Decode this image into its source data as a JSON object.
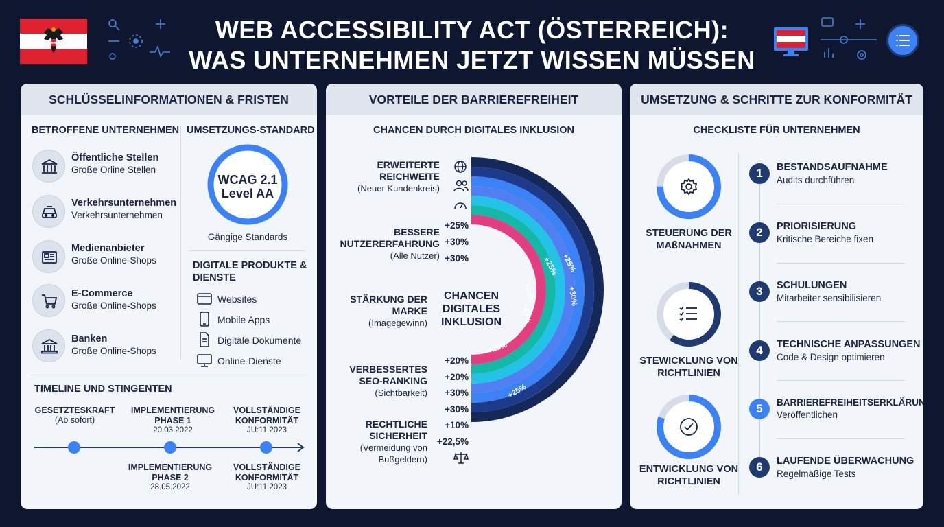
{
  "title_line1": "WEB ACCESSIBILITY ACT (ÖSTERREICH):",
  "title_line2": "WAS UNTERNEHMEN JETZT WISSEN MÜSSEN",
  "colors": {
    "navy": "#0e1630",
    "blue": "#3b82f6",
    "dark_blue": "#1e3a6e",
    "pink": "#e23e80",
    "teal": "#14b8a6",
    "cyan": "#22c3e6",
    "red": "#e0212f"
  },
  "left": {
    "heading": "SCHLÜSSELINFORMATIONEN & FRISTEN",
    "affected_heading": "BETROFFENE UNTERNEHMEN",
    "affected": [
      {
        "icon": "government-building-icon",
        "title": "Öffentliche Stellen",
        "sub": "Große Orline Stellen"
      },
      {
        "icon": "car-icon",
        "title": "Verkehrsunternehmen",
        "sub": "Verkehrsunternehmen"
      },
      {
        "icon": "newspaper-icon",
        "title": "Medienanbieter",
        "sub": "Große Online-Shops"
      },
      {
        "icon": "shopping-cart-icon",
        "title": "E-Commerce",
        "sub": "Große Online-Shops"
      },
      {
        "icon": "bank-icon",
        "title": "Banken",
        "sub": "Große Online-Shops"
      }
    ],
    "standard_heading": "UMSETZUNGS-STANDARD",
    "standard_line1": "WCAG 2.1",
    "standard_line2": "Level AA",
    "standard_caption": "Gängige Standards",
    "products_heading": "DIGITALE PRODUKTE & DIENSTE",
    "products": [
      {
        "icon": "browser-window-icon",
        "label": "Websites"
      },
      {
        "icon": "smartphone-icon",
        "label": "Mobile Apps"
      },
      {
        "icon": "document-icon",
        "label": "Digitale Dokumente"
      },
      {
        "icon": "monitor-icon",
        "label": "Online-Dienste"
      }
    ],
    "timeline_heading": "TIMELINE UND STINGENTEN",
    "timeline_top": [
      {
        "title": "GESETZTESKRAFT",
        "sub": "(Ab sofort)"
      },
      {
        "title": "IMPLEMENTIERUNG PHASE 1",
        "sub": "20.03.2022"
      },
      {
        "title": "VOLLSTÄNDIGE KONFORMITÄT",
        "sub": "JU:11.2023"
      }
    ],
    "timeline_bottom": [
      {
        "title": "IMPLEMENTIERUNG PHASE 2",
        "sub": "28.05.2022"
      },
      {
        "title": "VOLLSTÄNDIGE KONFORMITÄT",
        "sub": "JU:11.2023"
      }
    ]
  },
  "middle": {
    "heading": "VORTEILE DER BARRIEREFREIHEIT",
    "subheading": "CHANCEN DURCH DIGITALES INKLUSION",
    "center_label": "CHANCEN DIGITALES INKLUSION",
    "benefits": [
      {
        "title": "ERWEITERTE REICHWEITE",
        "sub": "(Neuer Kundenkreis)"
      },
      {
        "title": "BESSERE NUTZERERFAHRUNG",
        "sub": "(Alle Nutzer)"
      },
      {
        "title": "STÄRKUNG DER MARKE",
        "sub": "(Imagegewinn)"
      },
      {
        "title": "VERBESSERTES SEO-RANKING",
        "sub": "(Sichtbarkeit)"
      },
      {
        "title": "RECHTLICHE SICHERHEIT",
        "sub": "(Vermeidung von Bußgeldern)"
      }
    ],
    "values_a": [
      "+25%",
      "+30%",
      "+30%"
    ],
    "values_b": [
      "+20%",
      "+20%",
      "+30%",
      "+30%",
      "+10%",
      "+22,5%"
    ],
    "arc_labels": [
      "+25%",
      "+25%",
      "+30%",
      "+33%",
      "+25%",
      "+30%",
      "+25%"
    ]
  },
  "right": {
    "heading": "UMSETZUNG & SCHRITTE ZUR KONFORMITÄT",
    "subheading": "CHECKLISTE FÜR UNTERNEHMEN",
    "rings": [
      {
        "icon": "gear-icon",
        "label": "STEUERUNG DER MAßNAHMEN",
        "fraction": 0.75
      },
      {
        "icon": "checklist-icon",
        "label": "STEWICKLUNG VON RICHTLINIEN",
        "fraction": 0.6
      },
      {
        "icon": "checkmark-circle-icon",
        "label": "ENTWICKLUNG VON RICHTLINIEN",
        "fraction": 0.8
      }
    ],
    "steps": [
      {
        "num": "1",
        "title": "BESTANDSAUFNAHME",
        "sub": "Audits durchführen"
      },
      {
        "num": "2",
        "title": "PRIORISIERUNG",
        "sub": "Kritische Bereiche fixen"
      },
      {
        "num": "3",
        "title": "SCHULUNGEN",
        "sub": "Mitarbeiter sensibilisieren"
      },
      {
        "num": "4",
        "title": "TECHNISCHE ANPASSUNGEN",
        "sub": "Code & Design optimieren"
      },
      {
        "num": "5",
        "title": "BARRIEREFREIHEITSERKLÄRUNG",
        "sub": "Veröffentlichen"
      },
      {
        "num": "6",
        "title": "LAUFENDE ÜBERWACHUNG",
        "sub": "Regelmäßige Tests"
      }
    ]
  }
}
